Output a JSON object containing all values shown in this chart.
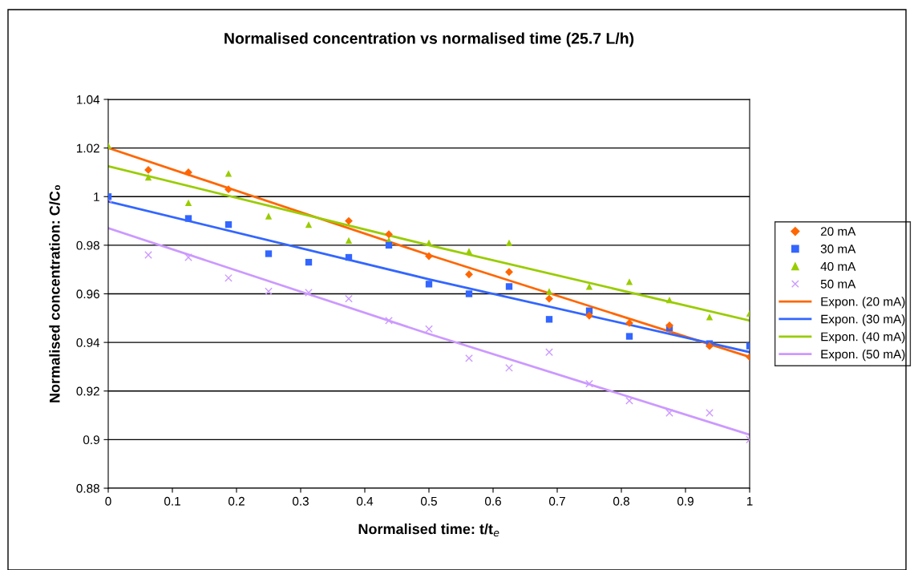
{
  "chart_data": {
    "type": "scatter",
    "title": "Normalised concentration vs normalised time (25.7 L/h)",
    "xlabel": "Normalised time: t/t$_{e}$",
    "ylabel": "Normalised concentration: C/C₀",
    "x": [
      0,
      0.0625,
      0.125,
      0.1875,
      0.25,
      0.3125,
      0.375,
      0.4375,
      0.5,
      0.5625,
      0.625,
      0.6875,
      0.75,
      0.8125,
      0.875,
      0.9375,
      1
    ],
    "series": [
      {
        "name": "20 mA",
        "color": "#ff6600",
        "marker": "diamond",
        "values": [
          null,
          1.011,
          1.01,
          1.003,
          null,
          null,
          0.99,
          0.9845,
          0.9755,
          0.968,
          0.969,
          0.958,
          0.951,
          0.948,
          0.947,
          0.9385,
          0.934
        ]
      },
      {
        "name": "30 mA",
        "color": "#3366ff",
        "marker": "square",
        "values": [
          1.0,
          null,
          0.991,
          0.9885,
          0.9765,
          0.973,
          0.975,
          0.98,
          0.964,
          0.96,
          0.963,
          0.9495,
          0.953,
          0.9425,
          0.946,
          0.9395,
          0.9385
        ]
      },
      {
        "name": "40 mA",
        "color": "#99cc00",
        "marker": "triangle",
        "values": [
          1.021,
          1.008,
          0.9975,
          1.0095,
          0.992,
          0.9885,
          0.982,
          0.982,
          0.981,
          0.9775,
          0.981,
          0.961,
          0.963,
          0.965,
          0.9575,
          0.9505,
          0.952
        ]
      },
      {
        "name": "50 mA",
        "color": "#cc99ff",
        "marker": "cross",
        "values": [
          0.999,
          0.976,
          0.975,
          0.9665,
          0.961,
          0.9605,
          0.958,
          0.949,
          0.9455,
          0.9335,
          0.9295,
          0.936,
          0.923,
          0.916,
          0.911,
          0.911,
          0.9
        ]
      },
      {
        "name": "Expon. (20 mA)",
        "type": "line",
        "color": "#ff6600",
        "x": [
          0,
          0.5,
          1
        ],
        "values": [
          1.02,
          0.976,
          0.934
        ]
      },
      {
        "name": "Expon. (30 mA)",
        "type": "line",
        "color": "#3366ff",
        "x": [
          0,
          0.5,
          1
        ],
        "values": [
          0.998,
          0.966,
          0.936
        ]
      },
      {
        "name": "Expon. (40 mA)",
        "type": "line",
        "color": "#99cc00",
        "x": [
          0,
          0.5,
          1
        ],
        "values": [
          1.0125,
          0.98,
          0.949
        ]
      },
      {
        "name": "Expon. (50 mA)",
        "type": "line",
        "color": "#cc99ff",
        "x": [
          0,
          0.5,
          1
        ],
        "values": [
          0.987,
          0.9435,
          0.902
        ]
      }
    ],
    "xlim": [
      0,
      1
    ],
    "xticks": [
      0,
      0.1,
      0.2,
      0.3,
      0.4,
      0.5,
      0.6,
      0.7,
      0.8,
      0.9,
      1
    ],
    "ylim": [
      0.88,
      1.04
    ],
    "yticks": [
      0.88,
      0.9,
      0.92,
      0.94,
      0.96,
      0.98,
      1,
      1.02,
      1.04
    ],
    "grid": "y",
    "legend": "right"
  }
}
